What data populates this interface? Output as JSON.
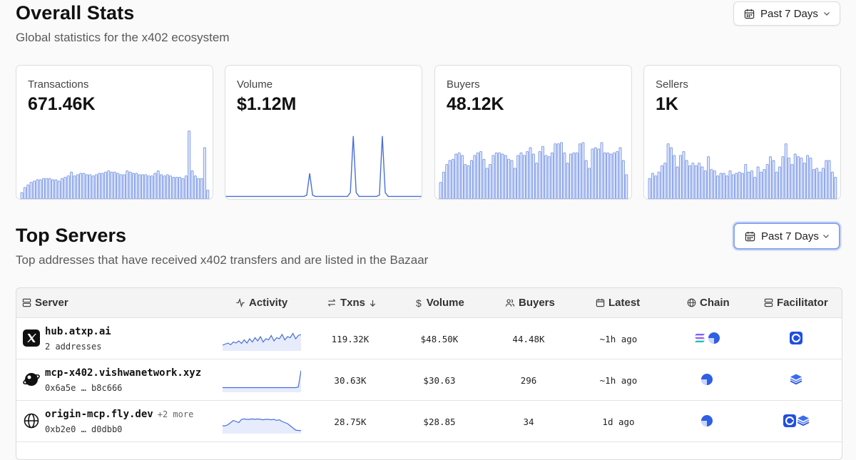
{
  "overall": {
    "title": "Overall Stats",
    "subtitle": "Global statistics for the x402 ecosystem",
    "range_label": "Past 7 Days"
  },
  "cards": [
    {
      "label": "Transactions",
      "value": "671.46K",
      "chart": "bar",
      "series": [
        0.05,
        0.09,
        0.11,
        0.13,
        0.14,
        0.15,
        0.15,
        0.16,
        0.16,
        0.16,
        0.15,
        0.15,
        0.14,
        0.16,
        0.17,
        0.18,
        0.21,
        0.18,
        0.19,
        0.2,
        0.2,
        0.19,
        0.19,
        0.18,
        0.19,
        0.2,
        0.2,
        0.21,
        0.22,
        0.21,
        0.21,
        0.2,
        0.19,
        0.19,
        0.22,
        0.21,
        0.2,
        0.2,
        0.19,
        0.19,
        0.19,
        0.18,
        0.18,
        0.2,
        0.22,
        0.19,
        0.18,
        0.19,
        0.18,
        0.17,
        0.17,
        0.17,
        0.16,
        0.18,
        0.53,
        0.22,
        0.18,
        0.16,
        0.16,
        0.4,
        0.07
      ]
    },
    {
      "label": "Volume",
      "value": "$1.12M",
      "chart": "line",
      "series": [
        0.02,
        0.02,
        0.02,
        0.02,
        0.02,
        0.02,
        0.02,
        0.02,
        0.02,
        0.02,
        0.02,
        0.02,
        0.02,
        0.02,
        0.02,
        0.02,
        0.02,
        0.02,
        0.02,
        0.02,
        0.02,
        0.02,
        0.02,
        0.02,
        0.02,
        0.02,
        0.02,
        0.02,
        0.03,
        0.2,
        0.03,
        0.02,
        0.02,
        0.02,
        0.02,
        0.02,
        0.02,
        0.02,
        0.02,
        0.02,
        0.02,
        0.02,
        0.02,
        0.05,
        0.49,
        0.05,
        0.02,
        0.02,
        0.02,
        0.02,
        0.02,
        0.02,
        0.02,
        0.03,
        0.49,
        0.05,
        0.02,
        0.02,
        0.02,
        0.02,
        0.02,
        0.02,
        0.02,
        0.02,
        0.02,
        0.02,
        0.02,
        0.02,
        0.02
      ]
    },
    {
      "label": "Buyers",
      "value": "48.12K",
      "chart": "bar",
      "series": [
        0.13,
        0.21,
        0.27,
        0.3,
        0.31,
        0.35,
        0.36,
        0.34,
        0.27,
        0.26,
        0.3,
        0.34,
        0.36,
        0.37,
        0.31,
        0.24,
        0.27,
        0.34,
        0.36,
        0.36,
        0.35,
        0.34,
        0.31,
        0.3,
        0.24,
        0.34,
        0.36,
        0.34,
        0.37,
        0.4,
        0.35,
        0.28,
        0.37,
        0.41,
        0.34,
        0.33,
        0.36,
        0.43,
        0.43,
        0.44,
        0.36,
        0.28,
        0.35,
        0.36,
        0.36,
        0.43,
        0.44,
        0.3,
        0.24,
        0.39,
        0.4,
        0.39,
        0.44,
        0.36,
        0.36,
        0.35,
        0.36,
        0.37,
        0.4,
        0.3,
        0.19
      ]
    },
    {
      "label": "Sellers",
      "value": "1K",
      "chart": "bar",
      "series": [
        0.16,
        0.2,
        0.18,
        0.21,
        0.26,
        0.28,
        0.43,
        0.4,
        0.34,
        0.25,
        0.34,
        0.37,
        0.3,
        0.26,
        0.28,
        0.26,
        0.28,
        0.25,
        0.22,
        0.33,
        0.23,
        0.22,
        0.18,
        0.2,
        0.2,
        0.18,
        0.22,
        0.19,
        0.2,
        0.21,
        0.2,
        0.27,
        0.21,
        0.22,
        0.17,
        0.25,
        0.21,
        0.23,
        0.27,
        0.33,
        0.3,
        0.21,
        0.25,
        0.33,
        0.43,
        0.32,
        0.27,
        0.35,
        0.33,
        0.32,
        0.28,
        0.34,
        0.32,
        0.23,
        0.24,
        0.21,
        0.24,
        0.3,
        0.3,
        0.21,
        0.17
      ]
    }
  ],
  "servers": {
    "title": "Top Servers",
    "subtitle": "Top addresses that have received x402 transfers and are listed in the Bazaar",
    "range_label": "Past 7 Days",
    "columns": [
      "Server",
      "Activity",
      "Txns",
      "Volume",
      "Buyers",
      "Latest",
      "Chain",
      "Facilitator"
    ],
    "rows": [
      {
        "name": "hub.atxp.ai",
        "more": "",
        "addr_a": "2 addresses",
        "addr_b": "",
        "logo": "x-logo",
        "txns": "119.32K",
        "volume": "$48.50K",
        "buyers": "44.48K",
        "latest": "~1h ago",
        "chains": [
          "solana-icon",
          "base-icon"
        ],
        "facilitators": [
          "coinbase-icon"
        ],
        "activity": [
          0.2,
          0.25,
          0.3,
          0.22,
          0.35,
          0.3,
          0.4,
          0.28,
          0.45,
          0.3,
          0.5,
          0.35,
          0.55,
          0.4,
          0.6,
          0.35,
          0.5,
          0.45,
          0.65,
          0.4,
          0.55,
          0.5,
          0.7,
          0.45,
          0.6,
          0.55,
          0.75,
          0.5,
          0.65,
          0.7
        ]
      },
      {
        "name": "mcp-x402.vishwanetwork.xyz",
        "more": "",
        "addr_a": "0x6a5e",
        "addr_b": "b8c666",
        "logo": "vishwa-logo",
        "txns": "30.63K",
        "volume": "$30.63",
        "buyers": "296",
        "latest": "~1h ago",
        "chains": [
          "base-icon"
        ],
        "facilitators": [
          "layers-icon"
        ],
        "activity": [
          0.15,
          0.15,
          0.15,
          0.15,
          0.15,
          0.15,
          0.15,
          0.15,
          0.15,
          0.15,
          0.15,
          0.15,
          0.15,
          0.15,
          0.15,
          0.15,
          0.15,
          0.15,
          0.15,
          0.15,
          0.15,
          0.15,
          0.15,
          0.15,
          0.15,
          0.15,
          0.15,
          0.15,
          0.18,
          0.95
        ]
      },
      {
        "name": "origin-mcp.fly.dev",
        "more": "+2 more",
        "addr_a": "0xb2e0",
        "addr_b": "d0dbb0",
        "logo": "globe-logo",
        "txns": "28.75K",
        "volume": "$28.85",
        "buyers": "34",
        "latest": "1d ago",
        "chains": [
          "base-icon"
        ],
        "facilitators": [
          "coinbase-icon",
          "layers-icon"
        ],
        "activity": [
          0.3,
          0.3,
          0.35,
          0.45,
          0.55,
          0.5,
          0.45,
          0.6,
          0.62,
          0.6,
          0.6,
          0.62,
          0.6,
          0.62,
          0.6,
          0.58,
          0.6,
          0.6,
          0.58,
          0.6,
          0.55,
          0.58,
          0.5,
          0.45,
          0.4,
          0.3,
          0.2,
          0.1,
          0.08,
          0.08
        ]
      }
    ]
  },
  "colors": {
    "accent": "#4a6fd8",
    "bar_fill": "#dde5fb",
    "bar_stroke": "#7f9be6"
  }
}
